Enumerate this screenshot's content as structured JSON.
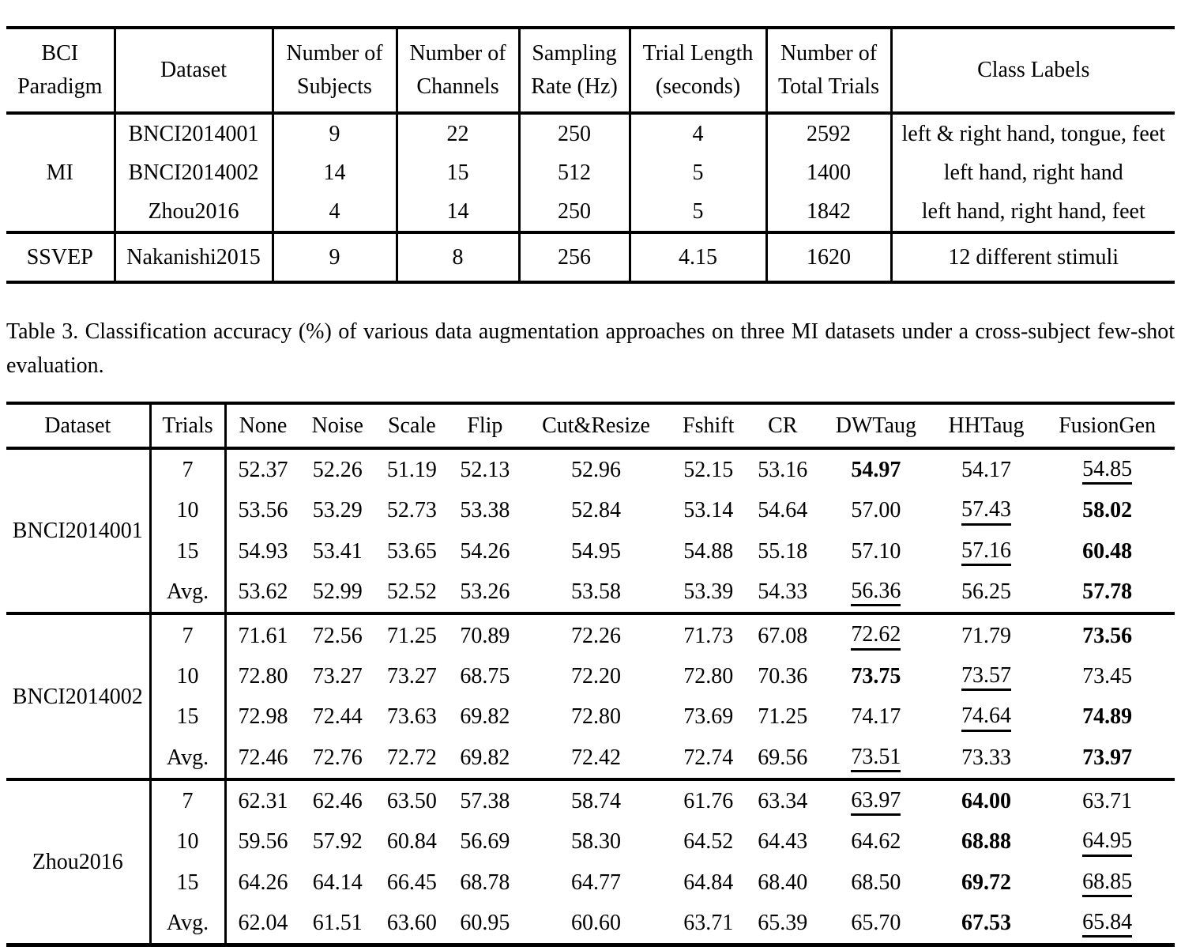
{
  "dataset_table": {
    "headers": [
      "BCI\nParadigm",
      "Dataset",
      "Number of\nSubjects",
      "Number of\nChannels",
      "Sampling\nRate (Hz)",
      "Trial Length\n(seconds)",
      "Number of\nTotal Trials",
      "Class Labels"
    ],
    "groups": [
      {
        "paradigm": "MI",
        "rows": [
          [
            "BNCI2014001",
            "9",
            "22",
            "250",
            "4",
            "2592",
            "left & right hand, tongue, feet"
          ],
          [
            "BNCI2014002",
            "14",
            "15",
            "512",
            "5",
            "1400",
            "left hand, right hand"
          ],
          [
            "Zhou2016",
            "4",
            "14",
            "250",
            "5",
            "1842",
            "left hand, right hand, feet"
          ]
        ]
      },
      {
        "paradigm": "SSVEP",
        "rows": [
          [
            "Nakanishi2015",
            "9",
            "8",
            "256",
            "4.15",
            "1620",
            "12 different stimuli"
          ]
        ]
      }
    ]
  },
  "caption": {
    "text": "Table 3. Classification accuracy (%) of various data augmentation approaches on three MI datasets under a cross-subject few-shot evaluation."
  },
  "results_table": {
    "headers": [
      "Dataset",
      "Trials",
      "None",
      "Noise",
      "Scale",
      "Flip",
      "Cut&Resize",
      "Fshift",
      "CR",
      "DWTaug",
      "HHTaug",
      "FusionGen"
    ],
    "blocks": [
      {
        "dataset": "BNCI2014001",
        "rows": [
          {
            "trials": "7",
            "values": [
              "52.37",
              "52.26",
              "51.19",
              "52.13",
              "52.96",
              "52.15",
              "53.16",
              "54.97",
              "54.17",
              "54.85"
            ],
            "bold_col": 7,
            "underline_col": 9
          },
          {
            "trials": "10",
            "values": [
              "53.56",
              "53.29",
              "52.73",
              "53.38",
              "52.84",
              "53.14",
              "54.64",
              "57.00",
              "57.43",
              "58.02"
            ],
            "bold_col": 9,
            "underline_col": 8
          },
          {
            "trials": "15",
            "values": [
              "54.93",
              "53.41",
              "53.65",
              "54.26",
              "54.95",
              "54.88",
              "55.18",
              "57.10",
              "57.16",
              "60.48"
            ],
            "bold_col": 9,
            "underline_col": 8
          },
          {
            "trials": "Avg.",
            "values": [
              "53.62",
              "52.99",
              "52.52",
              "53.26",
              "53.58",
              "53.39",
              "54.33",
              "56.36",
              "56.25",
              "57.78"
            ],
            "bold_col": 9,
            "underline_col": 7
          }
        ]
      },
      {
        "dataset": "BNCI2014002",
        "rows": [
          {
            "trials": "7",
            "values": [
              "71.61",
              "72.56",
              "71.25",
              "70.89",
              "72.26",
              "71.73",
              "67.08",
              "72.62",
              "71.79",
              "73.56"
            ],
            "bold_col": 9,
            "underline_col": 7
          },
          {
            "trials": "10",
            "values": [
              "72.80",
              "73.27",
              "73.27",
              "68.75",
              "72.20",
              "72.80",
              "70.36",
              "73.75",
              "73.57",
              "73.45"
            ],
            "bold_col": 7,
            "underline_col": 8
          },
          {
            "trials": "15",
            "values": [
              "72.98",
              "72.44",
              "73.63",
              "69.82",
              "72.80",
              "73.69",
              "71.25",
              "74.17",
              "74.64",
              "74.89"
            ],
            "bold_col": 9,
            "underline_col": 8
          },
          {
            "trials": "Avg.",
            "values": [
              "72.46",
              "72.76",
              "72.72",
              "69.82",
              "72.42",
              "72.74",
              "69.56",
              "73.51",
              "73.33",
              "73.97"
            ],
            "bold_col": 9,
            "underline_col": 7
          }
        ]
      },
      {
        "dataset": "Zhou2016",
        "rows": [
          {
            "trials": "7",
            "values": [
              "62.31",
              "62.46",
              "63.50",
              "57.38",
              "58.74",
              "61.76",
              "63.34",
              "63.97",
              "64.00",
              "63.71"
            ],
            "bold_col": 8,
            "underline_col": 7
          },
          {
            "trials": "10",
            "values": [
              "59.56",
              "57.92",
              "60.84",
              "56.69",
              "58.30",
              "64.52",
              "64.43",
              "64.62",
              "68.88",
              "64.95"
            ],
            "bold_col": 8,
            "underline_col": 9
          },
          {
            "trials": "15",
            "values": [
              "64.26",
              "64.14",
              "66.45",
              "68.78",
              "64.77",
              "64.84",
              "68.40",
              "68.50",
              "69.72",
              "68.85"
            ],
            "bold_col": 8,
            "underline_col": 9
          },
          {
            "trials": "Avg.",
            "values": [
              "62.04",
              "61.51",
              "63.60",
              "60.95",
              "60.60",
              "63.71",
              "65.39",
              "65.70",
              "67.53",
              "65.84"
            ],
            "bold_col": 8,
            "underline_col": 9
          }
        ]
      }
    ]
  }
}
